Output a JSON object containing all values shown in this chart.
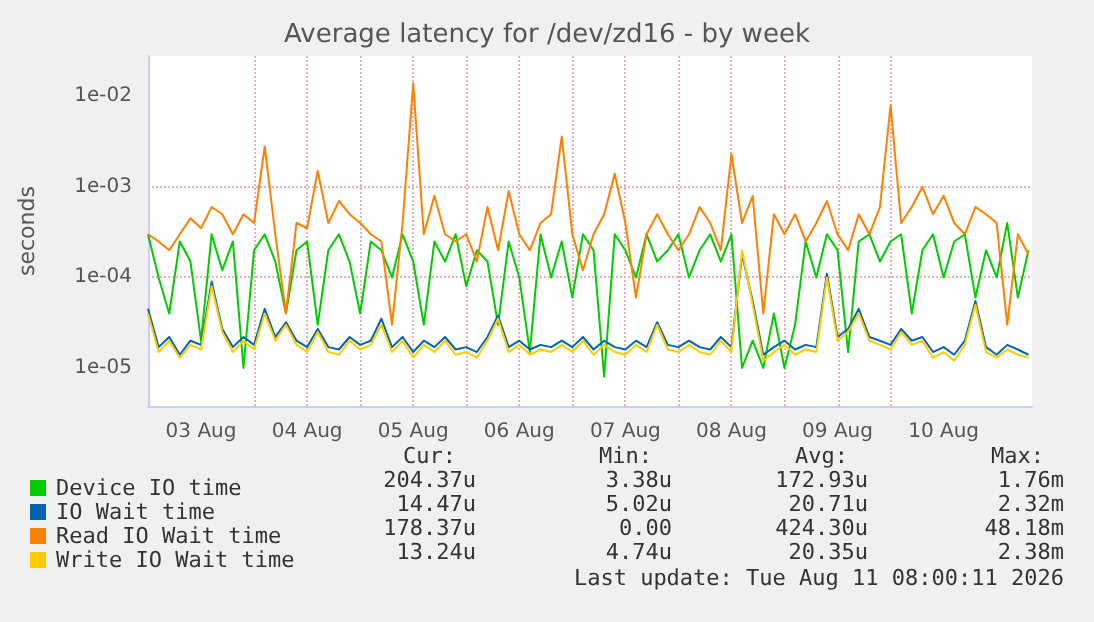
{
  "chart_data": {
    "type": "line",
    "title": "Average latency for /dev/zd16 - by week",
    "ylabel": "seconds",
    "log": "y",
    "grid": true,
    "legend": "bottom",
    "marker": "none",
    "line_style": "solid",
    "xlim": [
      "2026-08-03T00:00",
      "2026-08-11T08:00"
    ],
    "ylim": [
      3.8e-06,
      0.028
    ],
    "xticks": [
      {
        "value": "2026-08-03T12:00",
        "label": "03 Aug"
      },
      {
        "value": "2026-08-04T00:00",
        "label": null
      },
      {
        "value": "2026-08-04T12:00",
        "label": "04 Aug"
      },
      {
        "value": "2026-08-05T00:00",
        "label": null
      },
      {
        "value": "2026-08-05T12:00",
        "label": "05 Aug"
      },
      {
        "value": "2026-08-06T00:00",
        "label": null
      },
      {
        "value": "2026-08-06T12:00",
        "label": "06 Aug"
      },
      {
        "value": "2026-08-07T00:00",
        "label": null
      },
      {
        "value": "2026-08-07T12:00",
        "label": "07 Aug"
      },
      {
        "value": "2026-08-08T00:00",
        "label": null
      },
      {
        "value": "2026-08-08T12:00",
        "label": "08 Aug"
      },
      {
        "value": "2026-08-09T00:00",
        "label": null
      },
      {
        "value": "2026-08-09T12:00",
        "label": "09 Aug"
      },
      {
        "value": "2026-08-10T00:00",
        "label": null
      },
      {
        "value": "2026-08-10T12:00",
        "label": "10 Aug"
      }
    ],
    "yticks": [
      {
        "value": 1e-05,
        "label": "1e-05"
      },
      {
        "value": 0.0001,
        "label": "1e-04"
      },
      {
        "value": 0.001,
        "label": "1e-03"
      },
      {
        "value": 0.01,
        "label": "1e-02"
      }
    ],
    "x": [
      "2026-08-03T00:00",
      "2026-08-03T02:24",
      "2026-08-03T04:48",
      "2026-08-03T07:12",
      "2026-08-03T09:36",
      "2026-08-03T12:00",
      "2026-08-03T14:24",
      "2026-08-03T16:48",
      "2026-08-03T19:12",
      "2026-08-03T21:36",
      "2026-08-04T00:00",
      "2026-08-04T02:24",
      "2026-08-04T04:48",
      "2026-08-04T07:12",
      "2026-08-04T09:36",
      "2026-08-04T12:00",
      "2026-08-04T14:24",
      "2026-08-04T16:48",
      "2026-08-04T19:12",
      "2026-08-04T21:36",
      "2026-08-05T00:00",
      "2026-08-05T02:24",
      "2026-08-05T04:48",
      "2026-08-05T07:12",
      "2026-08-05T09:36",
      "2026-08-05T12:00",
      "2026-08-05T14:24",
      "2026-08-05T16:48",
      "2026-08-05T19:12",
      "2026-08-05T21:36",
      "2026-08-06T00:00",
      "2026-08-06T02:24",
      "2026-08-06T04:48",
      "2026-08-06T07:12",
      "2026-08-06T09:36",
      "2026-08-06T12:00",
      "2026-08-06T14:24",
      "2026-08-06T16:48",
      "2026-08-06T19:12",
      "2026-08-06T21:36",
      "2026-08-07T00:00",
      "2026-08-07T02:24",
      "2026-08-07T04:48",
      "2026-08-07T07:12",
      "2026-08-07T09:36",
      "2026-08-07T12:00",
      "2026-08-07T14:24",
      "2026-08-07T16:48",
      "2026-08-07T19:12",
      "2026-08-07T21:36",
      "2026-08-08T00:00",
      "2026-08-08T02:24",
      "2026-08-08T04:48",
      "2026-08-08T07:12",
      "2026-08-08T09:36",
      "2026-08-08T12:00",
      "2026-08-08T14:24",
      "2026-08-08T16:48",
      "2026-08-08T19:12",
      "2026-08-08T21:36",
      "2026-08-09T00:00",
      "2026-08-09T02:24",
      "2026-08-09T04:48",
      "2026-08-09T07:12",
      "2026-08-09T09:36",
      "2026-08-09T12:00",
      "2026-08-09T14:24",
      "2026-08-09T16:48",
      "2026-08-09T19:12",
      "2026-08-09T21:36",
      "2026-08-10T00:00",
      "2026-08-10T02:24",
      "2026-08-10T04:48",
      "2026-08-10T07:12",
      "2026-08-10T09:36",
      "2026-08-10T12:00",
      "2026-08-10T14:24",
      "2026-08-10T16:48",
      "2026-08-10T19:12",
      "2026-08-10T21:36",
      "2026-08-11T00:00",
      "2026-08-11T02:24",
      "2026-08-11T04:48",
      "2026-08-11T07:12"
    ],
    "series": [
      {
        "name": "Device IO time",
        "color": "#00cc00",
        "values": [
          0.0003,
          0.0001,
          4e-05,
          0.00025,
          0.00015,
          2e-05,
          0.0003,
          0.00012,
          0.00025,
          1e-05,
          0.0002,
          0.0003,
          0.00015,
          4e-05,
          0.0002,
          0.00025,
          3e-05,
          0.0002,
          0.0003,
          0.00015,
          4e-05,
          0.00025,
          0.0002,
          0.0001,
          0.0003,
          0.00015,
          3e-05,
          0.00025,
          0.00015,
          0.0003,
          8e-05,
          0.0002,
          0.00015,
          3e-05,
          0.00025,
          0.0001,
          1.5e-05,
          0.0003,
          0.0001,
          0.00025,
          6e-05,
          0.0003,
          0.0002,
          8e-06,
          0.0003,
          0.0002,
          0.0001,
          0.0003,
          0.00015,
          0.0002,
          0.0003,
          0.0001,
          0.0002,
          0.0003,
          0.00015,
          0.0003,
          1e-05,
          2e-05,
          1e-05,
          4e-05,
          1e-05,
          3e-05,
          0.00025,
          0.0001,
          0.0003,
          0.0002,
          1.5e-05,
          0.00025,
          0.0003,
          0.00015,
          0.00025,
          0.0003,
          4e-05,
          0.0002,
          0.0003,
          0.0001,
          0.00025,
          0.0003,
          6e-05,
          0.0002,
          0.0001,
          0.0004,
          6e-05,
          0.0002
        ]
      },
      {
        "name": "IO Wait time",
        "color": "#0066b3",
        "values": [
          4.5e-05,
          1.7e-05,
          2.2e-05,
          1.4e-05,
          2e-05,
          1.8e-05,
          9e-05,
          2.7e-05,
          1.7e-05,
          2.2e-05,
          1.8e-05,
          4.5e-05,
          2.2e-05,
          3.2e-05,
          2e-05,
          1.7e-05,
          2.7e-05,
          1.7e-05,
          1.6e-05,
          2.2e-05,
          1.8e-05,
          2e-05,
          3.5e-05,
          1.7e-05,
          2.2e-05,
          1.5e-05,
          2e-05,
          1.7e-05,
          2.2e-05,
          1.6e-05,
          1.7e-05,
          1.5e-05,
          2.2e-05,
          3.8e-05,
          1.7e-05,
          2e-05,
          1.6e-05,
          1.8e-05,
          1.7e-05,
          2e-05,
          1.7e-05,
          2.2e-05,
          1.6e-05,
          2e-05,
          1.7e-05,
          1.6e-05,
          2e-05,
          1.7e-05,
          3.2e-05,
          1.8e-05,
          1.7e-05,
          2e-05,
          1.7e-05,
          1.6e-05,
          2.2e-05,
          1.7e-05,
          0.00018,
          5.5e-05,
          1.4e-05,
          1.7e-05,
          2e-05,
          1.6e-05,
          1.8e-05,
          1.7e-05,
          0.00011,
          2.2e-05,
          2.7e-05,
          4.5e-05,
          2.2e-05,
          2e-05,
          1.8e-05,
          2.7e-05,
          2e-05,
          2.2e-05,
          1.5e-05,
          1.7e-05,
          1.4e-05,
          2e-05,
          5.5e-05,
          1.7e-05,
          1.4e-05,
          1.8e-05,
          1.6e-05,
          1.4e-05
        ]
      },
      {
        "name": "Read IO Wait time",
        "color": "#ff8000",
        "values": [
          0.0003,
          0.00025,
          0.0002,
          0.0003,
          0.00045,
          0.00035,
          0.0006,
          0.0005,
          0.0003,
          0.0005,
          0.0004,
          0.0028,
          0.0003,
          4e-05,
          0.0004,
          0.00035,
          0.0015,
          0.0004,
          0.0007,
          0.0005,
          0.0004,
          0.0003,
          0.00025,
          3e-05,
          0.0004,
          0.014,
          0.0003,
          0.0008,
          0.0003,
          0.00025,
          0.0003,
          0.00015,
          0.0006,
          0.0002,
          0.0009,
          0.0003,
          0.0002,
          0.0004,
          0.0005,
          0.0036,
          0.0003,
          0.00012,
          0.0003,
          0.0005,
          0.0014,
          0.0004,
          6e-05,
          0.0003,
          0.0005,
          0.0003,
          0.0002,
          0.0003,
          0.0006,
          0.0004,
          0.0002,
          0.0023,
          0.0004,
          0.0008,
          4e-05,
          0.0005,
          0.0003,
          0.0005,
          0.00025,
          0.0004,
          0.0007,
          0.0003,
          0.0002,
          0.0005,
          0.0003,
          0.0006,
          0.008,
          0.0004,
          0.0006,
          0.001,
          0.0005,
          0.0008,
          0.0004,
          0.0003,
          0.0006,
          0.0005,
          0.0004,
          3e-05,
          0.0003,
          0.00018
        ]
      },
      {
        "name": "Write IO Wait time",
        "color": "#ffcc00",
        "values": [
          4e-05,
          1.5e-05,
          2e-05,
          1.3e-05,
          1.8e-05,
          1.6e-05,
          8e-05,
          2.5e-05,
          1.5e-05,
          2e-05,
          1.6e-05,
          4e-05,
          2e-05,
          3e-05,
          1.8e-05,
          1.5e-05,
          2.5e-05,
          1.5e-05,
          1.4e-05,
          2e-05,
          1.6e-05,
          1.8e-05,
          3e-05,
          1.5e-05,
          2e-05,
          1.3e-05,
          1.8e-05,
          1.5e-05,
          2e-05,
          1.4e-05,
          1.5e-05,
          1.3e-05,
          2e-05,
          3.5e-05,
          1.5e-05,
          1.8e-05,
          1.4e-05,
          1.6e-05,
          1.5e-05,
          1.8e-05,
          1.5e-05,
          2e-05,
          1.4e-05,
          1.8e-05,
          1.5e-05,
          1.4e-05,
          1.8e-05,
          1.5e-05,
          3e-05,
          1.6e-05,
          1.5e-05,
          1.8e-05,
          1.5e-05,
          1.4e-05,
          2e-05,
          1.5e-05,
          0.0002,
          5e-05,
          1.2e-05,
          1.5e-05,
          1.8e-05,
          1.4e-05,
          1.6e-05,
          1.5e-05,
          0.0001,
          2e-05,
          2.5e-05,
          4e-05,
          2e-05,
          1.8e-05,
          1.6e-05,
          2.5e-05,
          1.8e-05,
          2e-05,
          1.3e-05,
          1.5e-05,
          1.2e-05,
          1.8e-05,
          5e-05,
          1.5e-05,
          1.3e-05,
          1.6e-05,
          1.4e-05,
          1.3e-05
        ]
      }
    ],
    "annotations": [
      "Cur:",
      "Min:",
      "Avg:",
      "Max:",
      "204.37u",
      "3.38u",
      "172.93u",
      "1.76m",
      "14.47u",
      "5.02u",
      "20.71u",
      "2.32m",
      "178.37u",
      "0.00",
      "424.30u",
      "48.18m",
      "13.24u",
      "4.74u",
      "20.35u",
      "2.38m",
      "Last update: Tue Aug 11 08:00:11 2026"
    ]
  }
}
